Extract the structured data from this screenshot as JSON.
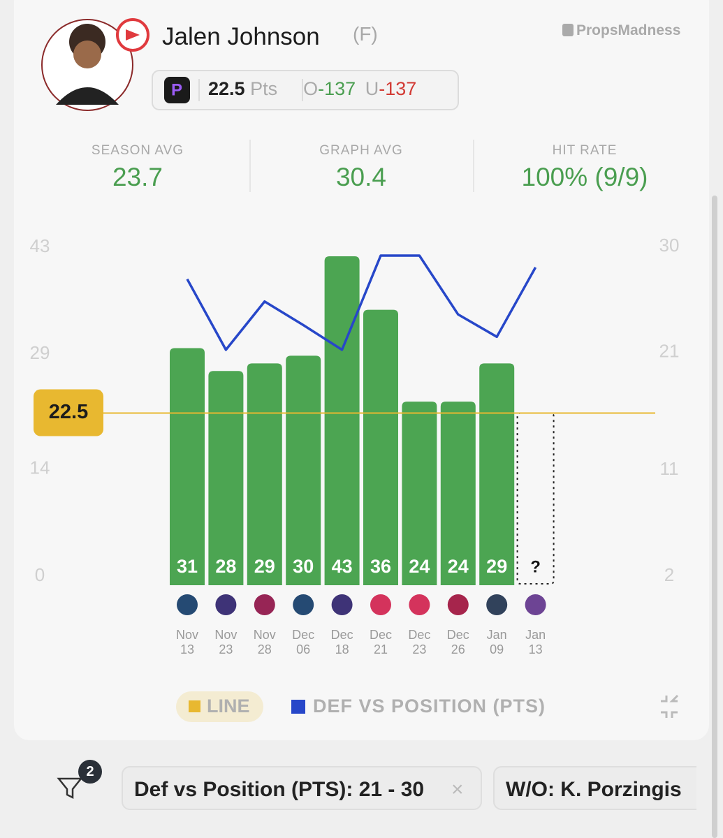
{
  "brand": "PropsMadness",
  "player": {
    "name": "Jalen Johnson",
    "position": "(F)"
  },
  "prop": {
    "line": "22.5",
    "unit": "Pts",
    "over_label": "O",
    "over": "-137",
    "under_label": "U",
    "under": "-137"
  },
  "stats": [
    {
      "label": "SEASON AVG",
      "value": "23.7"
    },
    {
      "label": "GRAPH AVG",
      "value": "30.4"
    },
    {
      "label": "HIT RATE",
      "value": "100% (9/9)"
    }
  ],
  "chart_data": {
    "type": "bar",
    "categories": [
      "Nov 13",
      "Nov 23",
      "Nov 28",
      "Dec 06",
      "Dec 18",
      "Dec 21",
      "Dec 23",
      "Dec 26",
      "Jan 09",
      "Jan 13"
    ],
    "values": [
      31,
      28,
      29,
      30,
      43,
      36,
      24,
      24,
      29,
      null
    ],
    "pending_label": "?",
    "color": "#4ca552",
    "ylim": [
      0,
      43
    ],
    "yticks": [
      0,
      14,
      29,
      43
    ],
    "threshold": {
      "name": "LINE",
      "value": 22.5,
      "color": "#e8b830"
    },
    "series": [
      {
        "name": "DEF VS POSITION (PTS)",
        "color": "#2747c9",
        "axis": "y2",
        "values": [
          28,
          22,
          26.1,
          24.1,
          22,
          30,
          30,
          25,
          23.1,
          29
        ]
      }
    ],
    "y2lim": [
      2,
      30
    ],
    "y2ticks": [
      2,
      11,
      21,
      30
    ]
  },
  "filters": {
    "count": "2",
    "chips": [
      "Def vs Position (PTS): 21 - 30",
      "W/O: K. Porzingis"
    ]
  }
}
